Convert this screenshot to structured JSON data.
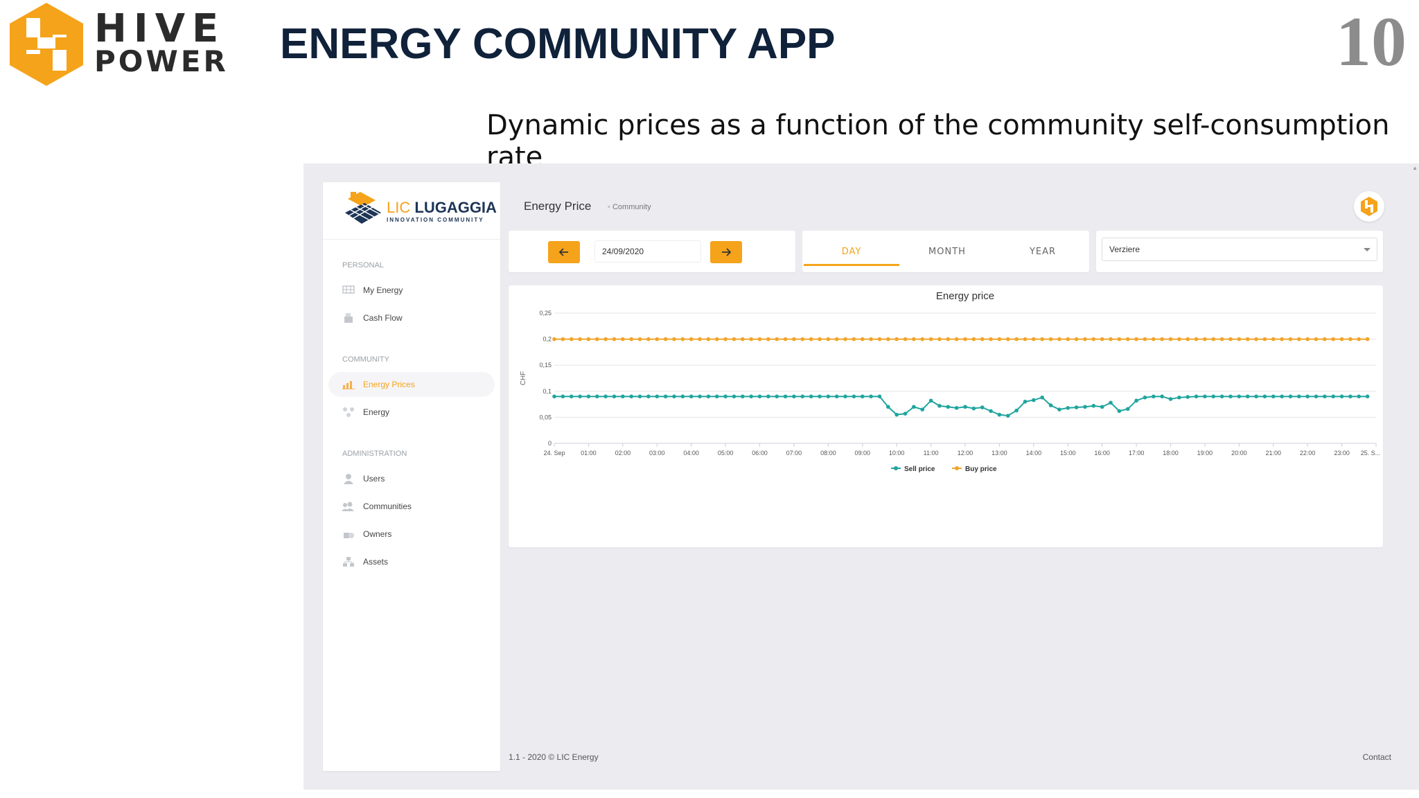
{
  "slide": {
    "logo_line1": "HIVE",
    "logo_line2": "POWER",
    "title": "ENERGY COMMUNITY APP",
    "number": "10",
    "subtitle": "Dynamic prices as a function of the community self-consumption rate"
  },
  "app": {
    "brand": {
      "prefix": "LIC",
      "name": "LUGAGGIA",
      "tagline": "INNOVATION COMMUNITY"
    },
    "sidebar": {
      "sections": [
        {
          "title": "PERSONAL",
          "items": [
            {
              "label": "My Energy",
              "icon": "solar-panel-icon"
            },
            {
              "label": "Cash Flow",
              "icon": "cash-register-icon"
            }
          ]
        },
        {
          "title": "COMMUNITY",
          "items": [
            {
              "label": "Energy Prices",
              "icon": "bar-chart-icon",
              "active": true
            },
            {
              "label": "Energy",
              "icon": "network-icon"
            }
          ]
        },
        {
          "title": "ADMINISTRATION",
          "items": [
            {
              "label": "Users",
              "icon": "user-icon"
            },
            {
              "label": "Communities",
              "icon": "group-icon"
            },
            {
              "label": "Owners",
              "icon": "owners-icon"
            },
            {
              "label": "Assets",
              "icon": "assets-icon"
            }
          ]
        }
      ]
    },
    "header": {
      "title": "Energy Price",
      "breadcrumb": "Community"
    },
    "date_picker": {
      "value": "24/09/2020"
    },
    "period_tabs": {
      "day": "DAY",
      "month": "MONTH",
      "year": "YEAR",
      "selected": "DAY"
    },
    "site_select": {
      "value": "Verziere"
    },
    "footer": {
      "left": "1.1 - 2020 © LIC Energy",
      "right": "Contact"
    },
    "colors": {
      "accent": "#f5a31a",
      "sell": "#1fa59e",
      "buy": "#f0a52a",
      "navy": "#1d3557"
    }
  },
  "chart_data": {
    "type": "line",
    "title": "Energy price",
    "ylabel": "CHF",
    "ylim": [
      0,
      0.25
    ],
    "yticks": [
      "0",
      "0,05",
      "0,1",
      "0,15",
      "0,2",
      "0,25"
    ],
    "xlim": [
      0,
      24
    ],
    "xticks": [
      "24. Sep",
      "01:00",
      "02:00",
      "03:00",
      "04:00",
      "05:00",
      "06:00",
      "07:00",
      "08:00",
      "09:00",
      "10:00",
      "11:00",
      "12:00",
      "13:00",
      "14:00",
      "15:00",
      "16:00",
      "17:00",
      "18:00",
      "19:00",
      "20:00",
      "21:00",
      "22:00",
      "23:00",
      "25. S..."
    ],
    "x_step_hours": 0.25,
    "legend_position": "bottom-center",
    "series": [
      {
        "name": "Sell price",
        "color": "#1fa59e",
        "values": [
          0.09,
          0.09,
          0.09,
          0.09,
          0.09,
          0.09,
          0.09,
          0.09,
          0.09,
          0.09,
          0.09,
          0.09,
          0.09,
          0.09,
          0.09,
          0.09,
          0.09,
          0.09,
          0.09,
          0.09,
          0.09,
          0.09,
          0.09,
          0.09,
          0.09,
          0.09,
          0.09,
          0.09,
          0.09,
          0.09,
          0.09,
          0.09,
          0.09,
          0.09,
          0.09,
          0.09,
          0.09,
          0.09,
          0.09,
          0.07,
          0.055,
          0.057,
          0.07,
          0.065,
          0.082,
          0.072,
          0.07,
          0.068,
          0.07,
          0.067,
          0.069,
          0.062,
          0.055,
          0.053,
          0.063,
          0.08,
          0.083,
          0.088,
          0.073,
          0.065,
          0.068,
          0.069,
          0.07,
          0.072,
          0.07,
          0.078,
          0.062,
          0.066,
          0.082,
          0.088,
          0.09,
          0.09,
          0.085,
          0.088,
          0.089,
          0.09,
          0.09,
          0.09,
          0.09,
          0.09,
          0.09,
          0.09,
          0.09,
          0.09,
          0.09,
          0.09,
          0.09,
          0.09,
          0.09,
          0.09,
          0.09,
          0.09,
          0.09,
          0.09,
          0.09,
          0.09
        ]
      },
      {
        "name": "Buy price",
        "color": "#f0a52a",
        "values": [
          0.2,
          0.2,
          0.2,
          0.2,
          0.2,
          0.2,
          0.2,
          0.2,
          0.2,
          0.2,
          0.2,
          0.2,
          0.2,
          0.2,
          0.2,
          0.2,
          0.2,
          0.2,
          0.2,
          0.2,
          0.2,
          0.2,
          0.2,
          0.2,
          0.2,
          0.2,
          0.2,
          0.2,
          0.2,
          0.2,
          0.2,
          0.2,
          0.2,
          0.2,
          0.2,
          0.2,
          0.2,
          0.2,
          0.2,
          0.2,
          0.2,
          0.2,
          0.2,
          0.2,
          0.2,
          0.2,
          0.2,
          0.2,
          0.2,
          0.2,
          0.2,
          0.2,
          0.2,
          0.2,
          0.2,
          0.2,
          0.2,
          0.2,
          0.2,
          0.2,
          0.2,
          0.2,
          0.2,
          0.2,
          0.2,
          0.2,
          0.2,
          0.2,
          0.2,
          0.2,
          0.2,
          0.2,
          0.2,
          0.2,
          0.2,
          0.2,
          0.2,
          0.2,
          0.2,
          0.2,
          0.2,
          0.2,
          0.2,
          0.2,
          0.2,
          0.2,
          0.2,
          0.2,
          0.2,
          0.2,
          0.2,
          0.2,
          0.2,
          0.2,
          0.2,
          0.2
        ]
      }
    ]
  }
}
